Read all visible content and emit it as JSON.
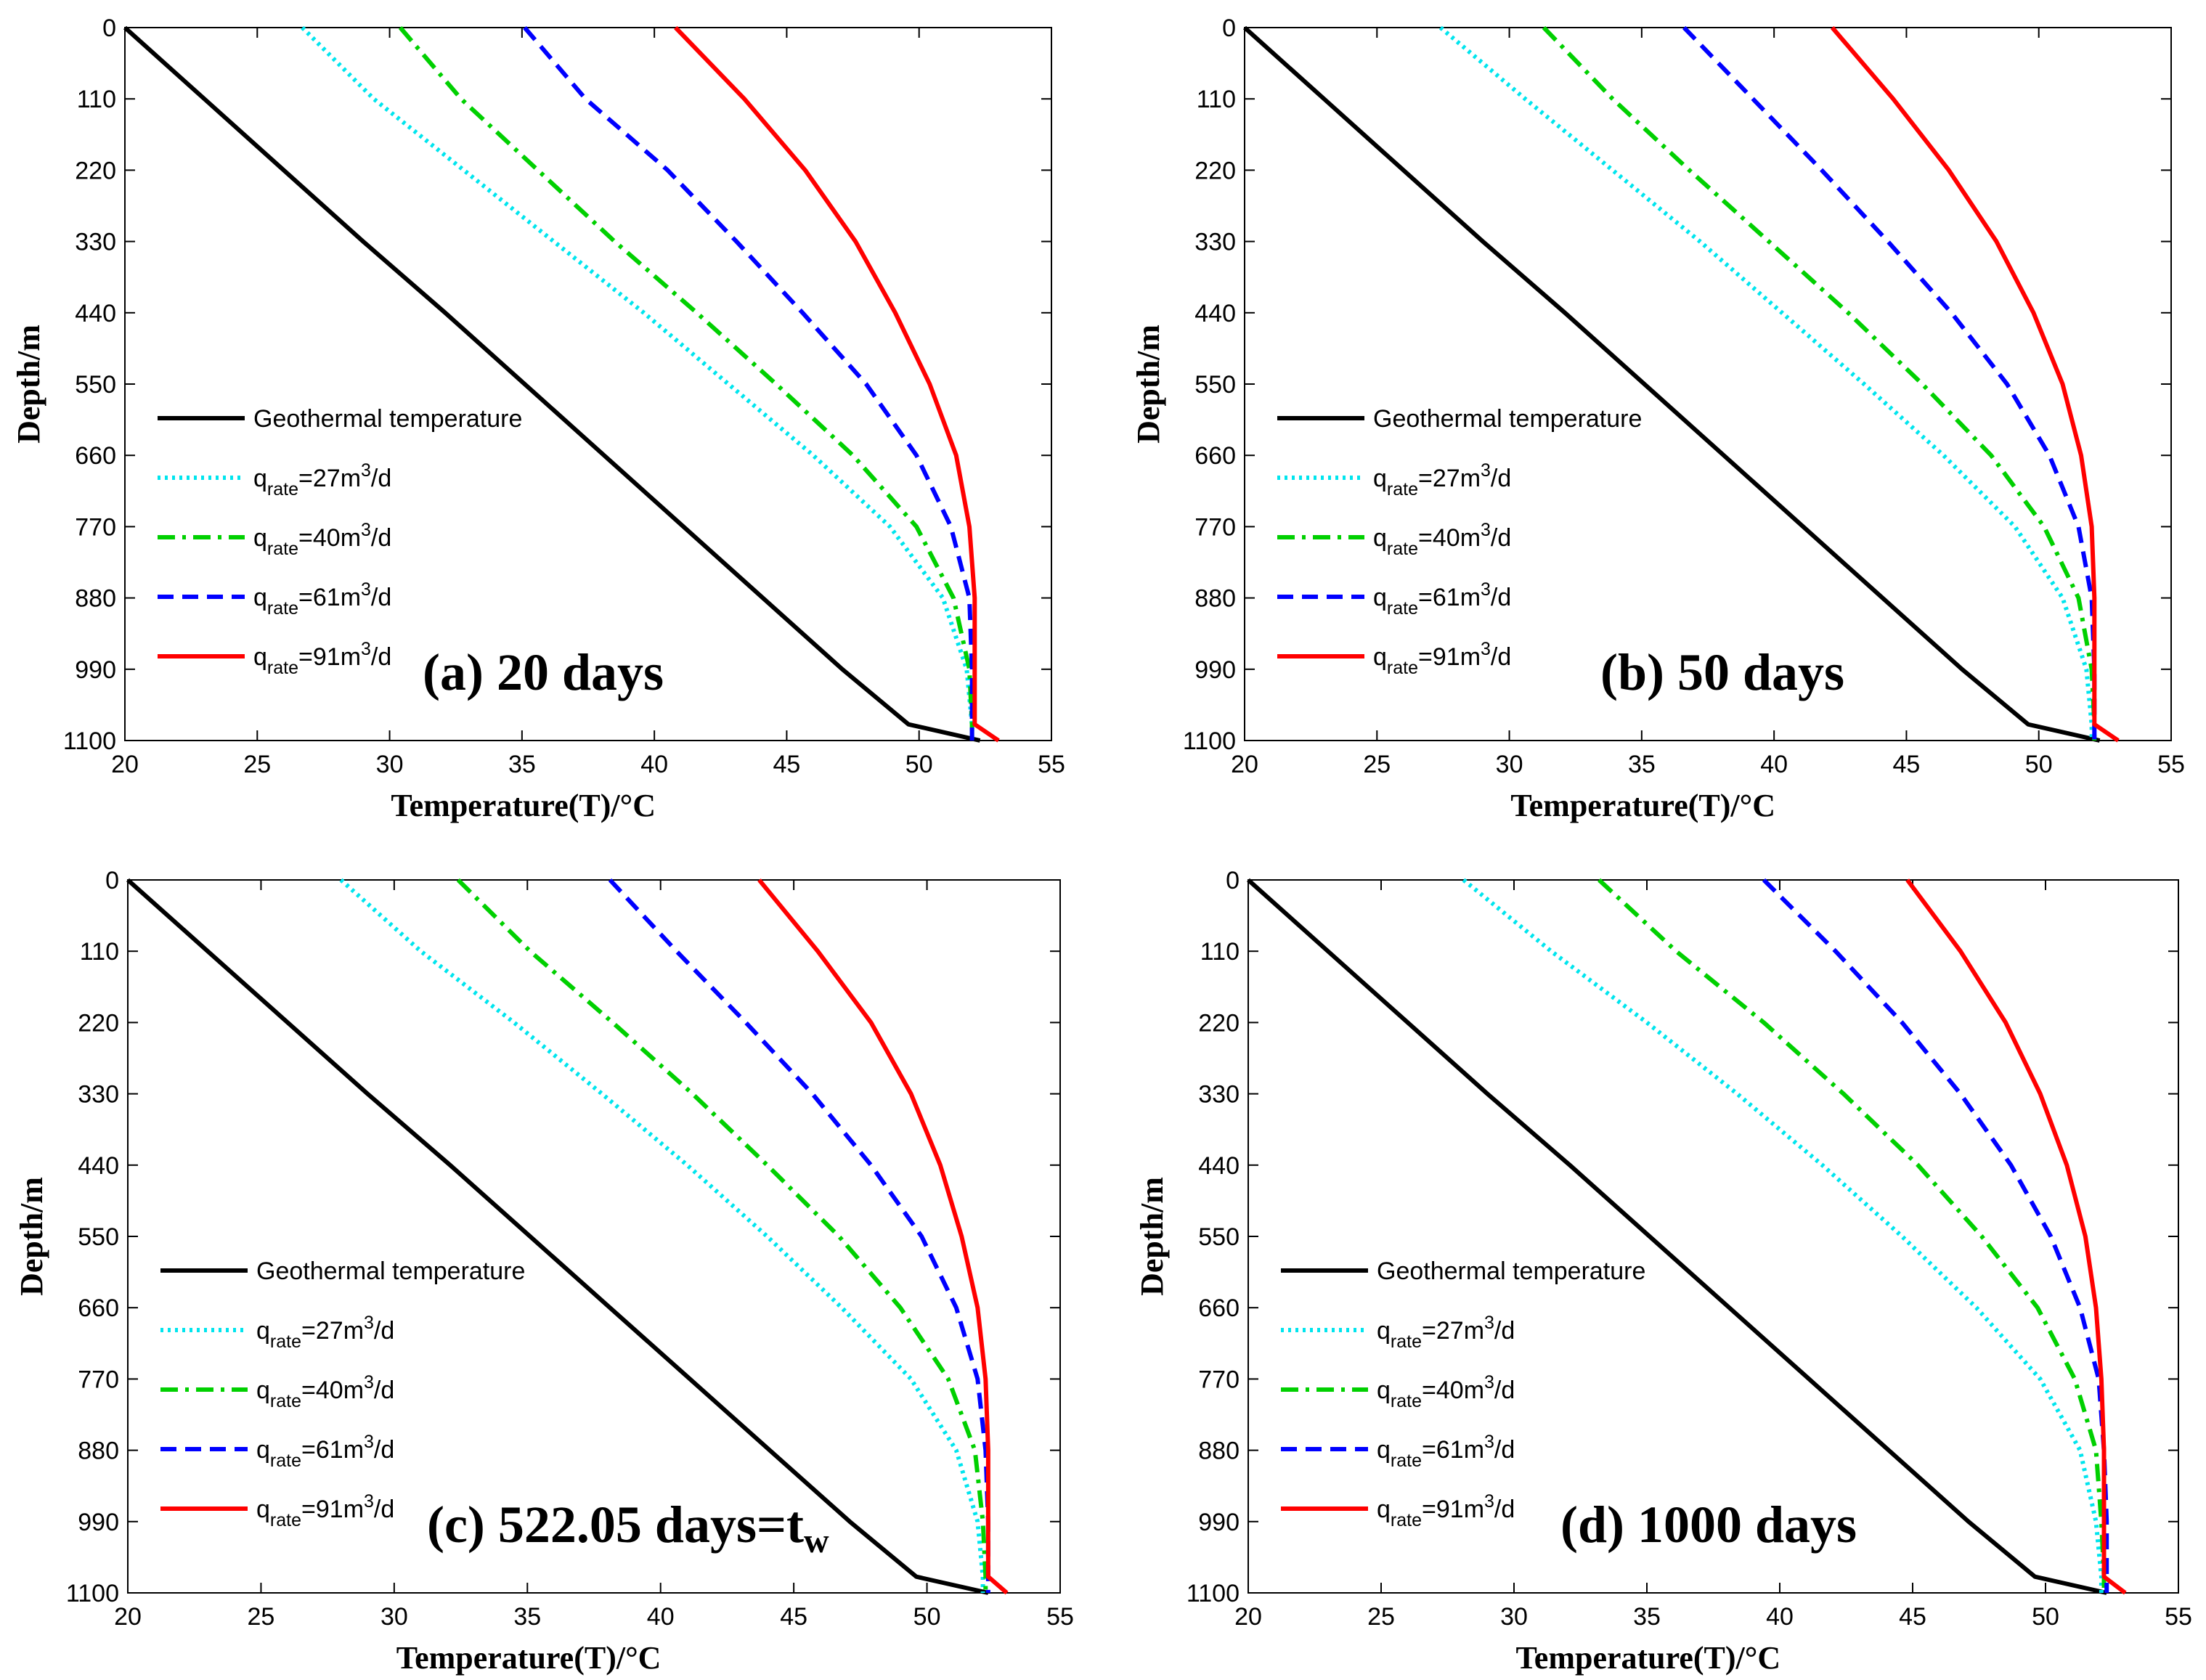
{
  "chart_data": {
    "type": "line",
    "figure": "Temperature profiles along wellbore at different times",
    "xlabel": "Temperature(T)/°C",
    "ylabel": "Depth/m",
    "xlim": [
      20,
      55
    ],
    "ylim": [
      1100,
      0
    ],
    "xticks": [
      "20",
      "25",
      "30",
      "35",
      "40",
      "45",
      "50",
      "55"
    ],
    "yticks": [
      "0",
      "110",
      "220",
      "330",
      "440",
      "550",
      "660",
      "770",
      "880",
      "990",
      "1100"
    ],
    "depth_points": [
      0,
      110,
      220,
      330,
      440,
      550,
      660,
      770,
      880,
      990,
      1075,
      1100
    ],
    "legend_labels": {
      "geothermal": "Geothermal temperature",
      "q_prefix": "q",
      "q_sub": "rate",
      "q_suffix_unit": "m",
      "q_sup": "3",
      "q_tail": "/d"
    },
    "panels": [
      {
        "title": "(a) 20 days",
        "series": [
          {
            "name": "Geothermal temperature",
            "style": "solid",
            "color": "#000000",
            "values": [
              20.0,
              23.0,
              26.0,
              29.0,
              32.1,
              35.1,
              38.1,
              41.1,
              44.1,
              47.1,
              49.6,
              52.3
            ]
          },
          {
            "name": "q_rate=27m3/d",
            "style": "dotted",
            "color": "#00e5ee",
            "values": [
              26.7,
              29.4,
              32.8,
              36.2,
              39.6,
              42.8,
              46.0,
              48.9,
              50.9,
              51.8,
              52.0,
              52.0
            ]
          },
          {
            "name": "q_rate=40m3/d",
            "style": "dashdot",
            "color": "#00d000",
            "values": [
              30.4,
              32.7,
              35.6,
              38.5,
              41.6,
              44.6,
              47.5,
              49.9,
              51.3,
              51.9,
              52.0,
              52.0
            ]
          },
          {
            "name": "q_rate=61m3/d",
            "style": "dashed",
            "color": "#0000ff",
            "values": [
              35.1,
              37.4,
              40.5,
              43.1,
              45.6,
              48.0,
              49.9,
              51.2,
              51.9,
              52.0,
              52.0,
              52.0
            ]
          },
          {
            "name": "q_rate=91m3/d",
            "style": "solid",
            "color": "#ff0000",
            "values": [
              40.8,
              43.4,
              45.7,
              47.6,
              49.1,
              50.4,
              51.4,
              51.9,
              52.1,
              52.1,
              52.1,
              53.0
            ]
          }
        ]
      },
      {
        "title": "(b) 50 days",
        "series": [
          {
            "name": "Geothermal temperature",
            "style": "solid",
            "color": "#000000",
            "values": [
              20.0,
              23.0,
              26.0,
              29.0,
              32.1,
              35.1,
              38.1,
              41.1,
              44.1,
              47.1,
              49.6,
              52.3
            ]
          },
          {
            "name": "q_rate=27m3/d",
            "style": "dotted",
            "color": "#00e5ee",
            "values": [
              27.4,
              30.6,
              33.9,
              37.2,
              40.3,
              43.4,
              46.4,
              49.1,
              50.9,
              51.8,
              52.0,
              52.0
            ]
          },
          {
            "name": "q_rate=40m3/d",
            "style": "dashdot",
            "color": "#00d000",
            "values": [
              31.3,
              33.9,
              36.8,
              39.8,
              42.8,
              45.6,
              48.2,
              50.2,
              51.5,
              52.0,
              52.1,
              52.1
            ]
          },
          {
            "name": "q_rate=61m3/d",
            "style": "dashed",
            "color": "#0000ff",
            "values": [
              36.6,
              39.2,
              41.8,
              44.3,
              46.7,
              48.8,
              50.4,
              51.5,
              52.0,
              52.1,
              52.1,
              52.1
            ]
          },
          {
            "name": "q_rate=91m3/d",
            "style": "solid",
            "color": "#ff0000",
            "values": [
              42.2,
              44.5,
              46.6,
              48.4,
              49.8,
              50.9,
              51.6,
              52.0,
              52.1,
              52.1,
              52.1,
              53.0
            ]
          }
        ]
      },
      {
        "title": "(c) 522.05 days=t",
        "title_sub": "w",
        "series": [
          {
            "name": "Geothermal temperature",
            "style": "solid",
            "color": "#000000",
            "values": [
              20.0,
              23.0,
              26.0,
              29.0,
              32.1,
              35.1,
              38.1,
              41.1,
              44.1,
              47.1,
              49.6,
              52.3
            ]
          },
          {
            "name": "q_rate=27m3/d",
            "style": "dotted",
            "color": "#00e5ee",
            "values": [
              28.0,
              31.0,
              34.5,
              37.8,
              41.0,
              44.0,
              46.8,
              49.4,
              51.1,
              51.9,
              52.1,
              52.1
            ]
          },
          {
            "name": "q_rate=40m3/d",
            "style": "dashdot",
            "color": "#00d000",
            "values": [
              32.4,
              35.1,
              38.2,
              41.2,
              44.0,
              46.7,
              49.0,
              50.8,
              51.8,
              52.1,
              52.2,
              52.2
            ]
          },
          {
            "name": "q_rate=61m3/d",
            "style": "dashed",
            "color": "#0000ff",
            "values": [
              38.1,
              40.6,
              43.2,
              45.7,
              47.9,
              49.8,
              51.1,
              51.9,
              52.2,
              52.3,
              52.3,
              52.3
            ]
          },
          {
            "name": "q_rate=91m3/d",
            "style": "solid",
            "color": "#ff0000",
            "values": [
              43.7,
              45.9,
              47.9,
              49.4,
              50.5,
              51.3,
              51.9,
              52.2,
              52.3,
              52.3,
              52.3,
              53.0
            ]
          }
        ]
      },
      {
        "title": "(d) 1000 days",
        "series": [
          {
            "name": "Geothermal temperature",
            "style": "solid",
            "color": "#000000",
            "values": [
              20.0,
              23.0,
              26.0,
              29.0,
              32.1,
              35.1,
              38.1,
              41.1,
              44.1,
              47.1,
              49.6,
              52.3
            ]
          },
          {
            "name": "q_rate=27m3/d",
            "style": "dotted",
            "color": "#00e5ee",
            "values": [
              28.1,
              31.4,
              35.0,
              38.4,
              41.6,
              44.6,
              47.4,
              49.8,
              51.3,
              51.9,
              52.1,
              52.1
            ]
          },
          {
            "name": "q_rate=40m3/d",
            "style": "dashdot",
            "color": "#00d000",
            "values": [
              33.2,
              36.1,
              39.4,
              42.4,
              45.2,
              47.6,
              49.7,
              51.1,
              51.9,
              52.1,
              52.2,
              52.2
            ]
          },
          {
            "name": "q_rate=61m3/d",
            "style": "dashed",
            "color": "#0000ff",
            "values": [
              39.4,
              42.1,
              44.6,
              46.8,
              48.7,
              50.2,
              51.3,
              52.0,
              52.2,
              52.3,
              52.3,
              52.3
            ]
          },
          {
            "name": "q_rate=91m3/d",
            "style": "solid",
            "color": "#ff0000",
            "values": [
              44.8,
              46.8,
              48.5,
              49.8,
              50.8,
              51.5,
              51.9,
              52.1,
              52.2,
              52.2,
              52.2,
              53.0
            ]
          }
        ]
      }
    ]
  }
}
